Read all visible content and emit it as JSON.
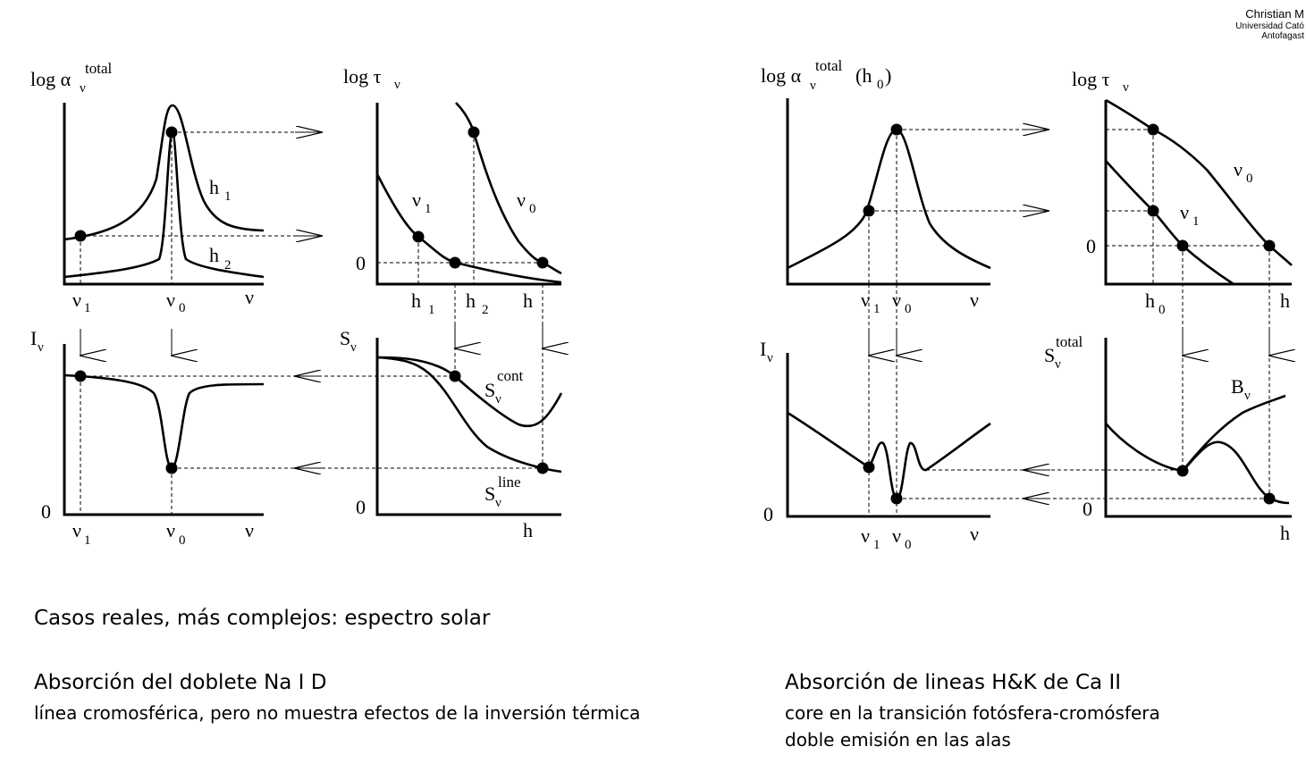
{
  "credit": {
    "line1": "Christian M",
    "line2": "Universidad Cató",
    "line3": "Antofagast"
  },
  "intro": "Casos reales, más complejos: espectro solar",
  "left": {
    "heading": "Absorción del doblete Na I D",
    "note": "línea cromosférica, pero no muestra efectos de la inversión térmica"
  },
  "right": {
    "heading": "Absorción de lineas H&K de Ca II",
    "note1": "core en la transición fotósfera-cromósfera",
    "note2": "doble emisión en las alas"
  },
  "symbols": {
    "log": "log",
    "alpha": "α",
    "tau": "τ",
    "nu": "ν",
    "v": "ν",
    "total": "total",
    "cont": "cont",
    "line": "line",
    "I": "I",
    "S": "S",
    "B": "B",
    "h": "h",
    "zero": "0",
    "sub1": "1",
    "sub2": "2",
    "sub0": "0",
    "h0_paren": "(h",
    "close_paren": ")"
  }
}
